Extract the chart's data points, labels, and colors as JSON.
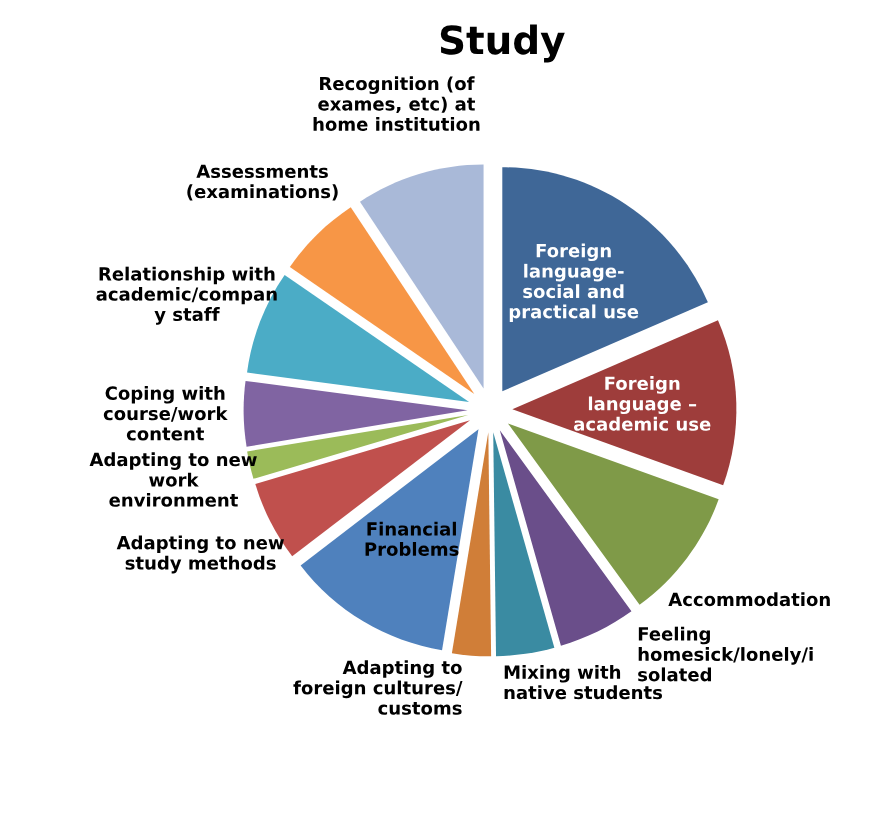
{
  "chart_data": {
    "type": "pie",
    "title": "Study",
    "categories": [
      "Foreign\nlanguage-\nsocial and\npractical use",
      "Foreign\nlanguage –\nacademic use",
      "Accommodation",
      "Feeling\nhomesick/lonely/i\nsolated",
      "Mixing with\nnative students",
      "Adapting to\nforeign cultures/\ncustoms",
      "Financial\nProblems",
      "Adapting to new\nstudy methods",
      "Adapting to new\nwork\nenvironment",
      "Coping with\ncourse/work\ncontent",
      "Relationship with\nacademic/compan\ny staff",
      "Assessments\n(examinations)",
      "Recognition (of\nexames, etc) at\nhome institution"
    ],
    "values": [
      18.5,
      12,
      9.5,
      5.6,
      4.2,
      2.8,
      12,
      5.8,
      2,
      4.7,
      7.5,
      6.1,
      9.3
    ],
    "colors": [
      "#3f6797",
      "#9e3d3b",
      "#7f9a48",
      "#6a4e8a",
      "#3a8ba2",
      "#d07e38",
      "#4f81bd",
      "#c0504d",
      "#9bbb59",
      "#8064a2",
      "#4bacc6",
      "#f79646",
      "#a9b9d8"
    ],
    "legend": false
  }
}
